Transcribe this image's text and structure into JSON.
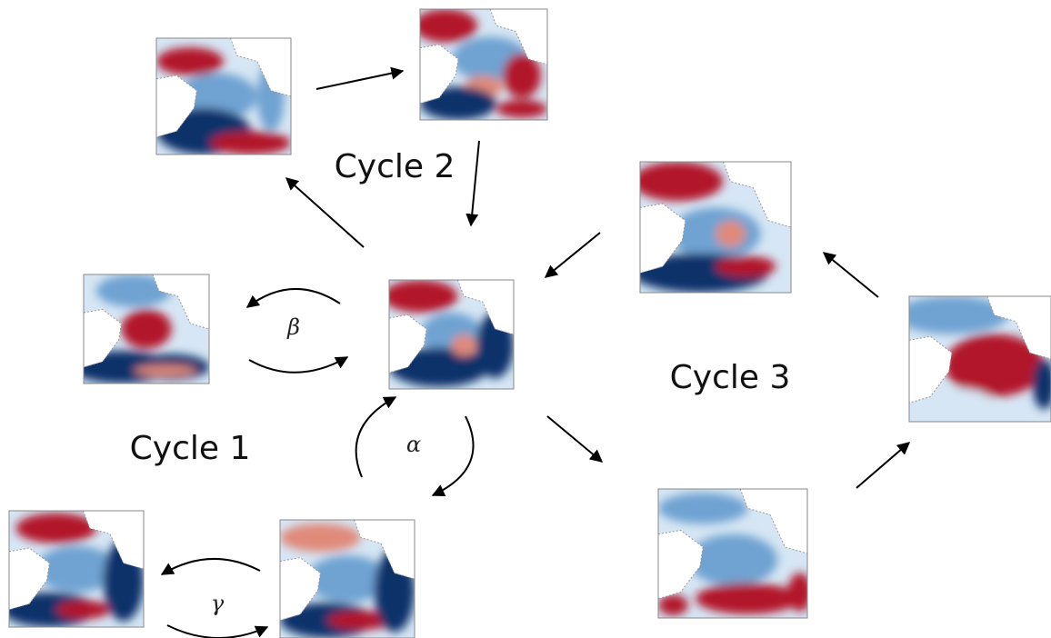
{
  "labels": {
    "cycle_2": "Cycle 2",
    "cycle_1": "Cycle 1",
    "cycle_3": "Cycle 3",
    "beta": "β",
    "alpha": "α",
    "gamma": "γ"
  }
}
